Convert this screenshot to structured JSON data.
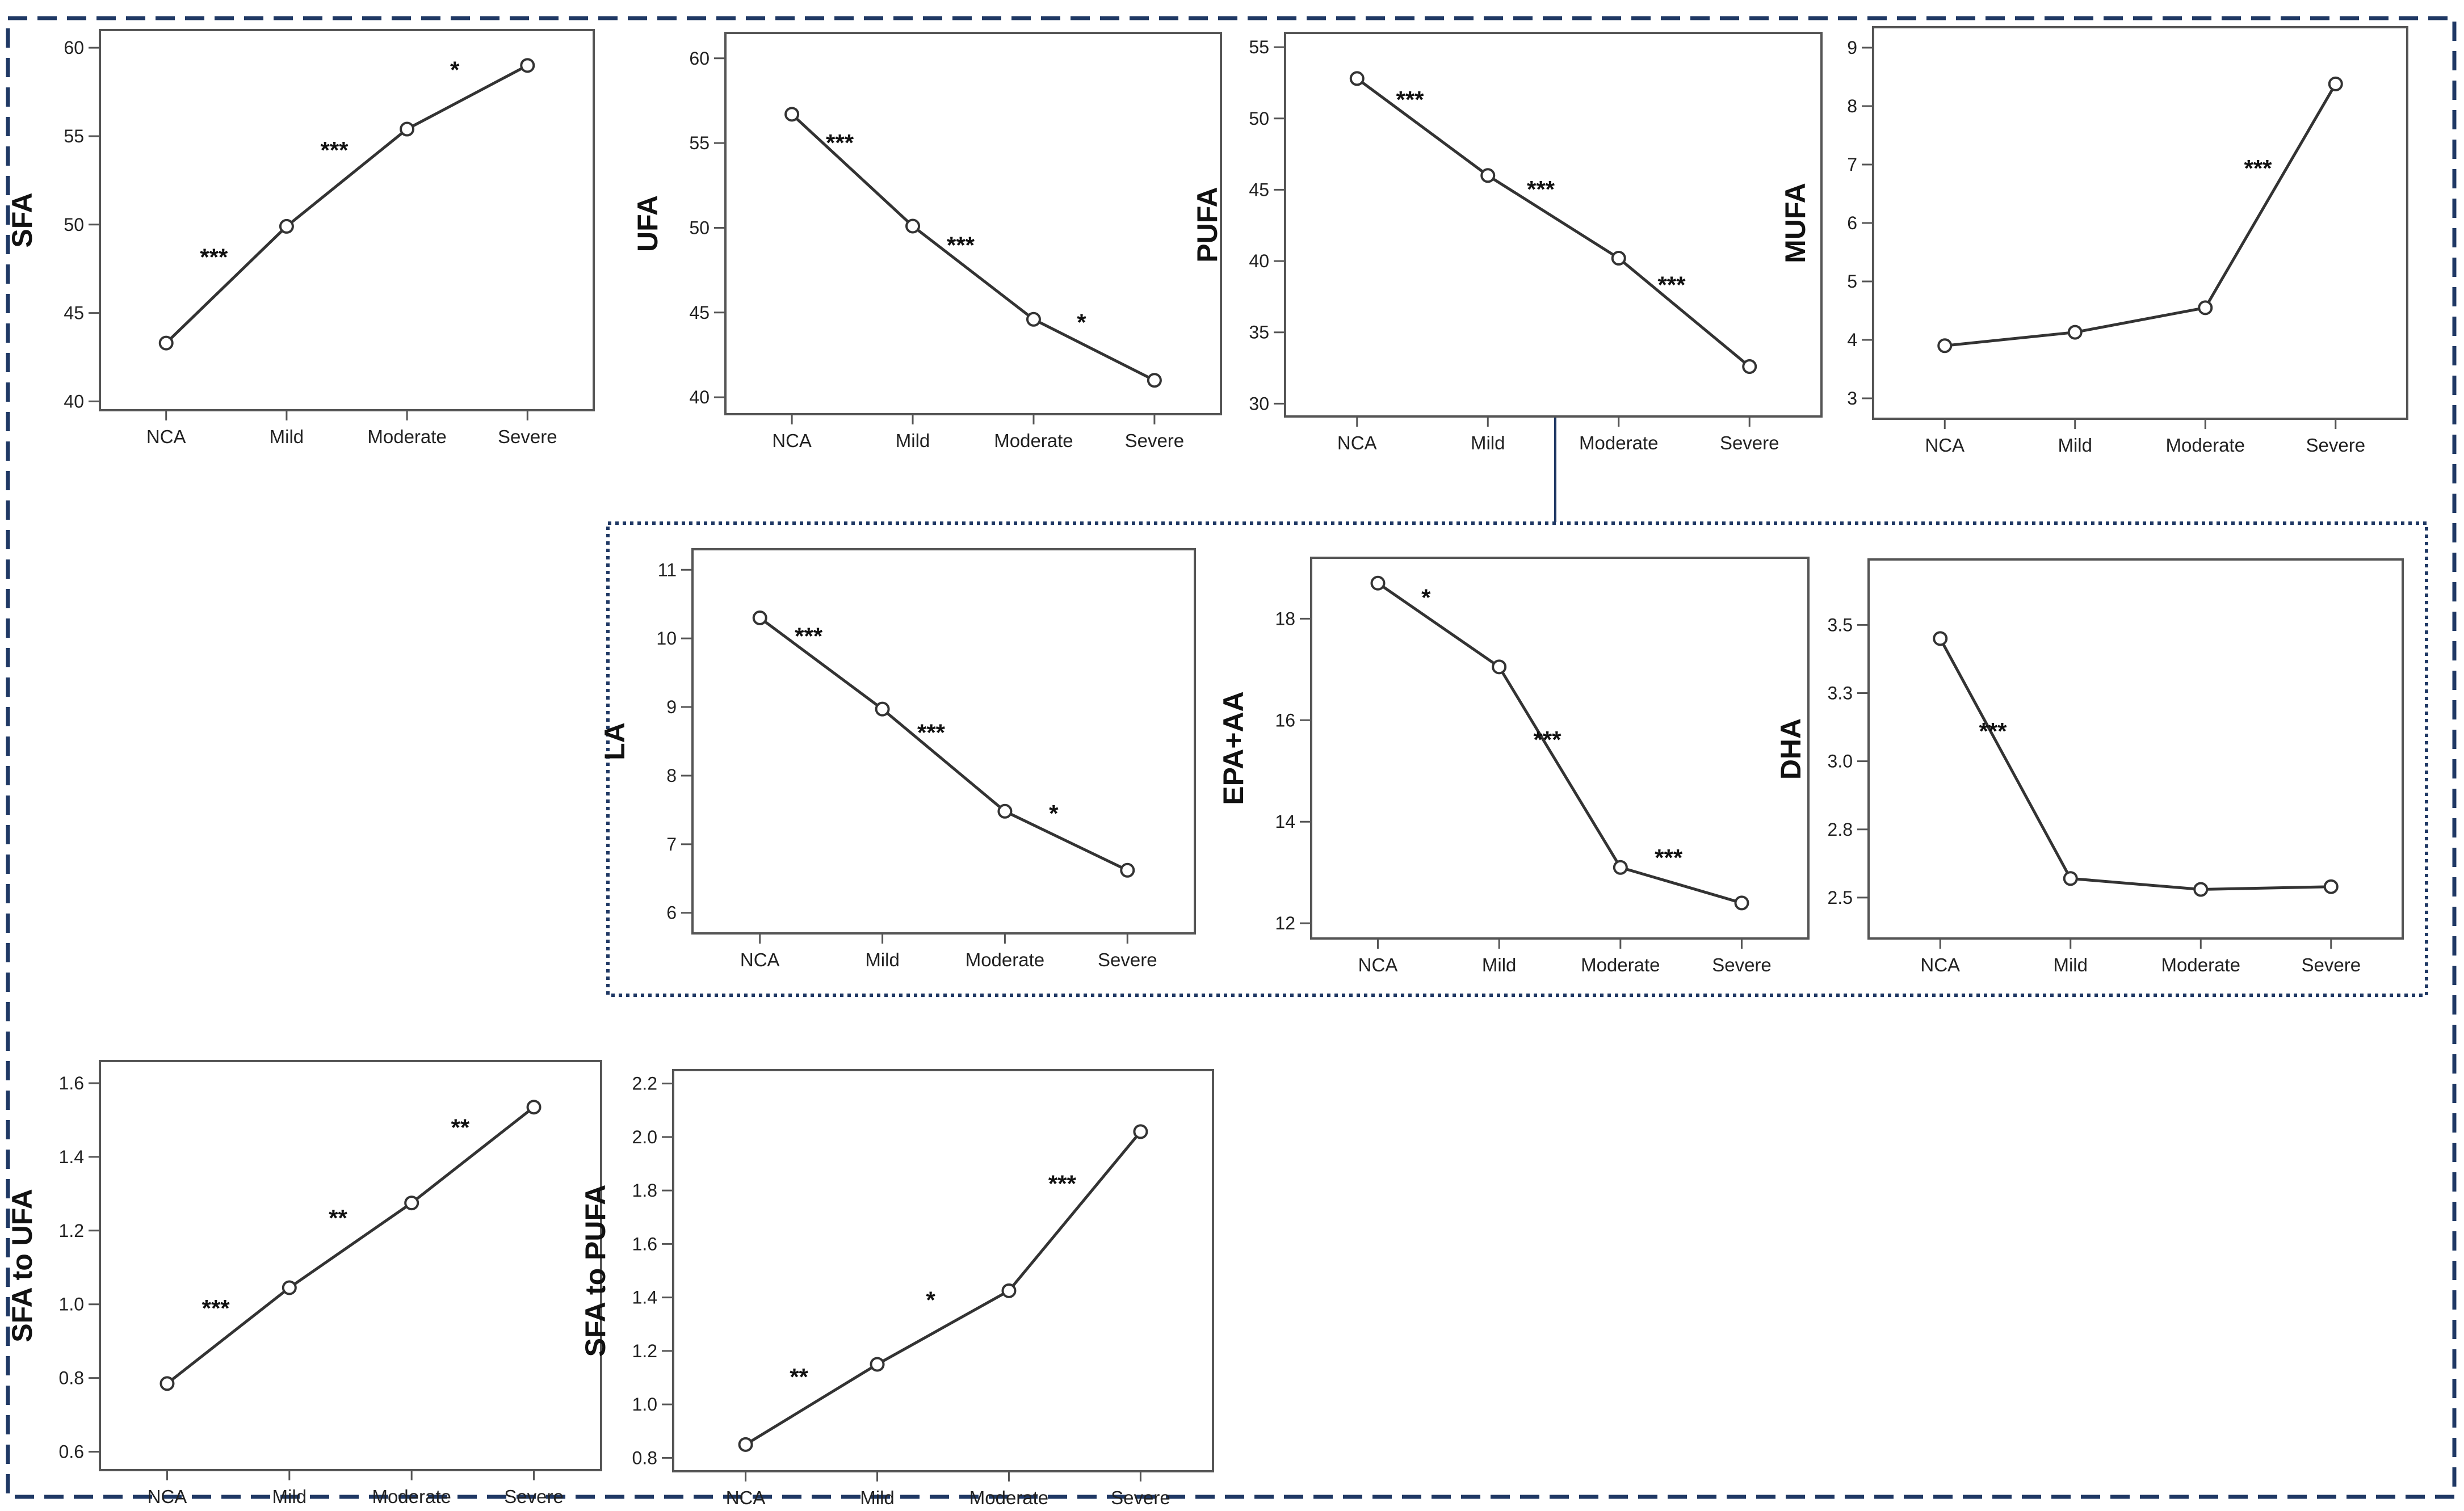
{
  "colors": {
    "frame": "#1f3864",
    "line": "#333333",
    "axis": "#555555",
    "text": "#222222",
    "background": "#ffffff"
  },
  "chart_data": [
    {
      "id": "sfa",
      "type": "line",
      "ylabel": "SFA",
      "categories": [
        "NCA",
        "Mild",
        "Moderate",
        "Severe"
      ],
      "values": [
        43.3,
        49.9,
        55.4,
        59.0
      ],
      "ylim": [
        39.5,
        61.0
      ],
      "yticks": [
        "40",
        "45",
        "50",
        "55",
        "60"
      ],
      "annotations": [
        "***",
        "***",
        "*"
      ]
    },
    {
      "id": "ufa",
      "type": "line",
      "ylabel": "UFA",
      "categories": [
        "NCA",
        "Mild",
        "Moderate",
        "Severe"
      ],
      "values": [
        56.7,
        50.1,
        44.6,
        41.0
      ],
      "ylim": [
        39.0,
        61.5
      ],
      "yticks": [
        "40",
        "45",
        "50",
        "55",
        "60"
      ],
      "annotations": [
        "***",
        "***",
        "*"
      ]
    },
    {
      "id": "pufa",
      "type": "line",
      "ylabel": "PUFA",
      "categories": [
        "NCA",
        "Mild",
        "Moderate",
        "Severe"
      ],
      "values": [
        52.8,
        46.0,
        40.2,
        32.6
      ],
      "ylim": [
        29.1,
        56.0
      ],
      "yticks": [
        "30",
        "35",
        "40",
        "45",
        "50",
        "55"
      ],
      "annotations": [
        "***",
        "***",
        "***"
      ]
    },
    {
      "id": "mufa",
      "type": "line",
      "ylabel": "MUFA",
      "categories": [
        "NCA",
        "Mild",
        "Moderate",
        "Severe"
      ],
      "values": [
        3.9,
        4.13,
        4.55,
        8.38
      ],
      "ylim": [
        2.65,
        9.35
      ],
      "yticks": [
        "3",
        "4",
        "5",
        "6",
        "7",
        "8",
        "9"
      ],
      "annotations": [
        "",
        "",
        "***"
      ]
    },
    {
      "id": "la",
      "type": "line",
      "ylabel": "LA",
      "categories": [
        "NCA",
        "Mild",
        "Moderate",
        "Severe"
      ],
      "values": [
        10.3,
        8.97,
        7.48,
        6.62
      ],
      "ylim": [
        5.7,
        11.3
      ],
      "yticks": [
        "6",
        "7",
        "8",
        "9",
        "10",
        "11"
      ],
      "annotations": [
        "***",
        "***",
        "*"
      ]
    },
    {
      "id": "epa_aa",
      "type": "line",
      "ylabel": "EPA+AA",
      "categories": [
        "NCA",
        "Mild",
        "Moderate",
        "Severe"
      ],
      "values": [
        18.7,
        17.05,
        13.1,
        12.4
      ],
      "ylim": [
        11.7,
        19.2
      ],
      "yticks": [
        "12",
        "14",
        "16",
        "18"
      ],
      "annotations": [
        "*",
        "***",
        "***"
      ]
    },
    {
      "id": "dha",
      "type": "line",
      "ylabel": "DHA",
      "categories": [
        "NCA",
        "Mild",
        "Moderate",
        "Severe"
      ],
      "values": [
        3.45,
        2.57,
        2.53,
        2.54
      ],
      "ylim": [
        2.35,
        3.74
      ],
      "yticks": [
        "2.5",
        "2.8",
        "3.0",
        "3.3",
        "3.5"
      ],
      "ytick_values": [
        2.5,
        2.75,
        3.0,
        3.25,
        3.5
      ],
      "annotations": [
        "***",
        "",
        ""
      ]
    },
    {
      "id": "sfa_ufa",
      "type": "line",
      "ylabel": "SFA to UFA",
      "categories": [
        "NCA",
        "Mild",
        "Moderate",
        "Severe"
      ],
      "values": [
        0.785,
        1.045,
        1.275,
        1.535
      ],
      "ylim": [
        0.55,
        1.66
      ],
      "yticks": [
        "0.6",
        "0.8",
        "1.0",
        "1.2",
        "1.4",
        "1.6"
      ],
      "annotations": [
        "***",
        "**",
        "**"
      ]
    },
    {
      "id": "sfa_pufa",
      "type": "line",
      "ylabel": "SFA to PUFA",
      "categories": [
        "NCA",
        "Mild",
        "Moderate",
        "Severe"
      ],
      "values": [
        0.85,
        1.15,
        1.425,
        2.02
      ],
      "ylim": [
        0.75,
        2.25
      ],
      "yticks": [
        "0.8",
        "1.0",
        "1.2",
        "1.4",
        "1.6",
        "1.8",
        "2.0",
        "2.2"
      ],
      "annotations": [
        "**",
        "*",
        "***"
      ]
    }
  ]
}
